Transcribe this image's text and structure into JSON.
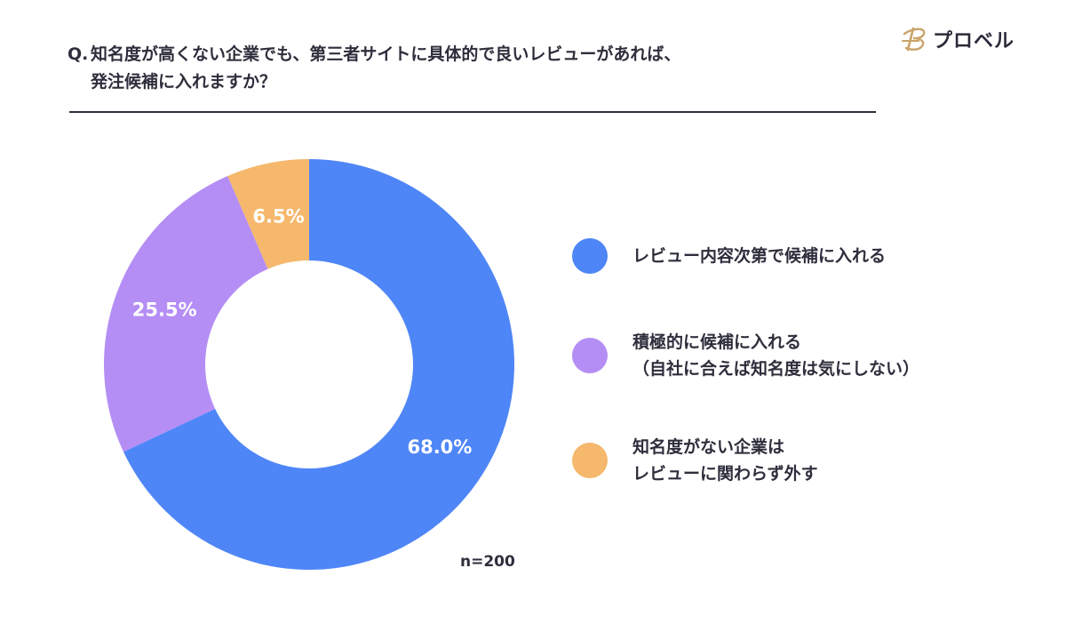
{
  "question": {
    "prefix": "Q.",
    "line1": "知名度が高くない企業でも、第三者サイトに具体的で良いレビューがあれば、",
    "line2": "発注候補に入れますか？"
  },
  "brand": {
    "logo_text": "プロベル",
    "logo_color": "#c9a46a"
  },
  "chart_data": {
    "type": "pie",
    "donut": true,
    "categories": [
      "レビュー内容次第で候補に入れる",
      "積極的に候補に入れる\n（自社に合えば知名度は気にしない）",
      "知名度がない企業は\nレビューに関わらず外す"
    ],
    "values": [
      68.0,
      25.5,
      6.5
    ],
    "data_labels": [
      "68.0%",
      "25.5%",
      "6.5%"
    ],
    "colors": [
      "#4f86f7",
      "#b48ef5",
      "#f5b86c"
    ],
    "legend_position": "right",
    "annotation": "n=200"
  }
}
